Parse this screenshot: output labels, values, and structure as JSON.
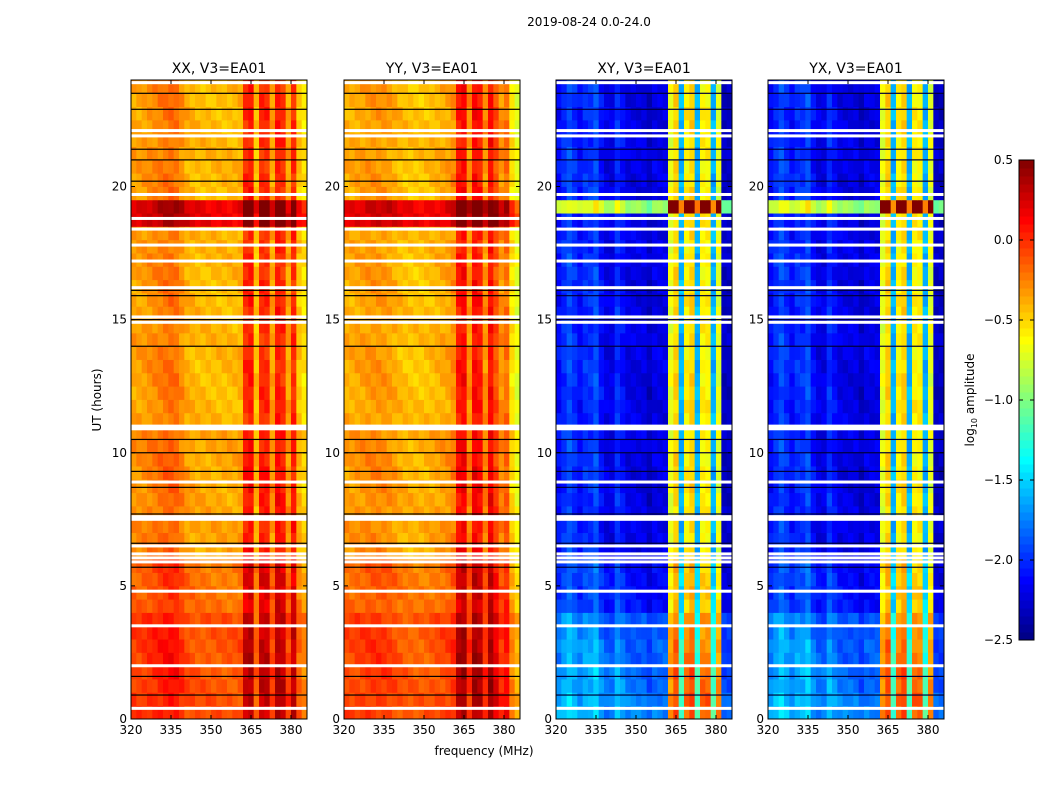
{
  "chart_data": {
    "type": "heatmap",
    "title": "2019-08-24 0.0-24.0",
    "xlabel": "frequency (MHz)",
    "ylabel": "UT (hours)",
    "xlim": [
      320,
      386
    ],
    "ylim": [
      0,
      24
    ],
    "xticks": [
      320,
      335,
      350,
      365,
      380
    ],
    "yticks": [
      0,
      5,
      10,
      15,
      20
    ],
    "colormap": "jet",
    "colorbar": {
      "label_main": "log",
      "label_sub": "10",
      "label_rest": " amplitude",
      "range": [
        -2.5,
        0.5
      ],
      "ticks": [
        0.5,
        0.0,
        -0.5,
        -1.0,
        -1.5,
        -2.0,
        -2.5
      ],
      "tick_labels": [
        "0.5",
        "0.0",
        "−0.5",
        "−1.0",
        "−1.5",
        "−2.0",
        "−2.5"
      ]
    },
    "freq_bin_MHz": 2,
    "time_bin_hours": 0.5,
    "freq_bins": [
      320,
      322,
      324,
      326,
      328,
      330,
      332,
      334,
      336,
      338,
      340,
      342,
      344,
      346,
      348,
      350,
      352,
      354,
      356,
      358,
      360,
      362,
      364,
      366,
      368,
      370,
      372,
      374,
      376,
      378,
      380,
      382,
      384
    ],
    "profiles": {
      "parallel_XX": [
        -0.35,
        -0.35,
        -0.33,
        -0.3,
        -0.28,
        -0.25,
        -0.22,
        -0.2,
        -0.22,
        -0.3,
        -0.38,
        -0.4,
        -0.42,
        -0.42,
        -0.42,
        -0.42,
        -0.42,
        -0.42,
        -0.42,
        -0.42,
        -0.4,
        0.0,
        0.05,
        -0.45,
        0.0,
        0.0,
        -0.35,
        0.05,
        0.0,
        -0.35,
        0.0,
        -0.45,
        -0.55
      ],
      "parallel_YY": [
        -0.38,
        -0.38,
        -0.36,
        -0.35,
        -0.33,
        -0.32,
        -0.32,
        -0.33,
        -0.35,
        -0.38,
        -0.42,
        -0.44,
        -0.45,
        -0.45,
        -0.45,
        -0.44,
        -0.42,
        -0.4,
        -0.38,
        -0.36,
        -0.3,
        0.05,
        0.1,
        -0.3,
        0.1,
        0.05,
        -0.3,
        0.1,
        -0.1,
        -0.3,
        -0.2,
        -0.55,
        -0.7
      ],
      "cross": [
        -2.1,
        -2.0,
        -1.9,
        -2.0,
        -2.1,
        -2.0,
        -2.0,
        -1.9,
        -2.1,
        -2.2,
        -2.2,
        -2.0,
        -2.1,
        -2.2,
        -2.2,
        -2.2,
        -2.2,
        -2.3,
        -2.2,
        -2.2,
        -2.2,
        -0.7,
        -0.5,
        -1.6,
        -0.6,
        -0.5,
        -1.6,
        -0.6,
        -0.6,
        -1.6,
        -0.7,
        -2.3,
        -2.3
      ]
    },
    "time_offsets": {
      "parallel": [
        0.3,
        0.3,
        0.3,
        0.3,
        0.3,
        0.3,
        0.3,
        0.3,
        0.2,
        0.2,
        0.2,
        0.2,
        0.05,
        0.05,
        0.05,
        0.05,
        0.05,
        0.05,
        0.05,
        0.05,
        0.05,
        0.05,
        0,
        0,
        0,
        0,
        0,
        0,
        0,
        0,
        0,
        0,
        0,
        0,
        0,
        0,
        0,
        0.6,
        0.6,
        0,
        0,
        0,
        0,
        0,
        0,
        0,
        0,
        0
      ],
      "cross": [
        0.45,
        0.45,
        0.4,
        0.4,
        0.35,
        0.35,
        0.3,
        0.3,
        0.1,
        0.1,
        0.1,
        0.1,
        0,
        0,
        0,
        0,
        0,
        0,
        0,
        0,
        0,
        0,
        0,
        0,
        0,
        0,
        0,
        0,
        0,
        0,
        0,
        0,
        0,
        0,
        0,
        0,
        0,
        0,
        1.3,
        0,
        0,
        0,
        0,
        0,
        0,
        0,
        0,
        0
      ]
    },
    "flagged_white_hours": [
      0.4,
      2.0,
      3.5,
      4.8,
      5.9,
      6.05,
      6.2,
      6.5,
      7.5,
      7.6,
      8.9,
      10.9,
      11.0,
      14.9,
      15.1,
      16.2,
      17.2,
      17.8,
      18.4,
      18.8,
      19.7,
      21.9,
      22.1,
      23.9
    ],
    "flagged_black_hours": [
      0.9,
      1.6,
      5.7,
      6.6,
      7.7,
      8.7,
      9.3,
      10.0,
      10.5,
      14.0,
      15.0,
      15.9,
      16.1,
      20.2,
      21.0,
      21.4,
      22.9,
      23.5
    ],
    "panels": [
      {
        "title": "XX, V3=EA01",
        "profile": "parallel_XX",
        "offset": "parallel"
      },
      {
        "title": "YY, V3=EA01",
        "profile": "parallel_YY",
        "offset": "parallel"
      },
      {
        "title": "XY, V3=EA01",
        "profile": "cross",
        "offset": "cross"
      },
      {
        "title": "YX, V3=EA01",
        "profile": "cross",
        "offset": "cross"
      }
    ]
  }
}
